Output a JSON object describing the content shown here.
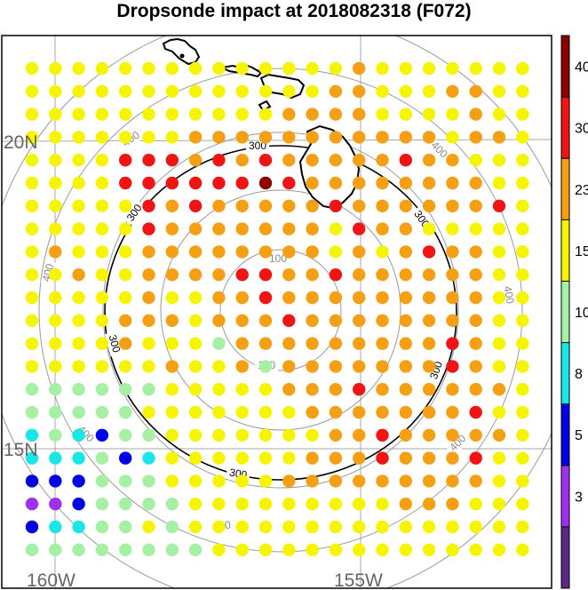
{
  "title": "Dropsonde impact at 2018082318 (F072)",
  "map": {
    "lat_labels": [
      {
        "text": "20N",
        "lat": 20
      },
      {
        "text": "15N",
        "lat": 15
      }
    ],
    "lon_labels": [
      {
        "text": "160W",
        "lon": -160
      },
      {
        "text": "155W",
        "lon": -155
      }
    ],
    "gray_rings": [
      {
        "value": 100,
        "label": "100"
      },
      {
        "value": 200,
        "label": ""
      },
      {
        "value": 300,
        "label": ""
      },
      {
        "value": 400,
        "label": "400"
      },
      {
        "value": 500,
        "label": ""
      }
    ],
    "black_ring": {
      "value": 300,
      "label": "300"
    },
    "coastline_color": "#000000"
  },
  "chart_data": {
    "type": "scatter",
    "title": "Dropsonde impact at 2018082318 (F072)",
    "colorbar": {
      "ticks": [
        "3",
        "5",
        "8",
        "10",
        "15",
        "23",
        "30",
        "40"
      ],
      "bins": [
        {
          "color": "#5b2a86"
        },
        {
          "color": "#a030f0"
        },
        {
          "color": "#0000e6"
        },
        {
          "color": "#19e6e6"
        },
        {
          "color": "#a6f0a6"
        },
        {
          "color": "#f5f500"
        },
        {
          "color": "#f5a014"
        },
        {
          "color": "#f01414"
        },
        {
          "color": "#8c0000"
        }
      ]
    },
    "grid_note_values": "bin index per dot: 5=15-23 yellow, 6=23-30 orange, 7=30-40 red, 8=>40 dark red, 4=10-15 green, 3=8-10 cyan, 2=5-8 blue, 1=3-5 purple",
    "rows": [
      [
        5,
        5,
        5,
        5,
        5,
        5,
        5,
        5,
        5,
        5,
        5,
        5,
        5,
        5,
        6,
        5,
        5,
        5,
        5,
        5,
        5,
        5
      ],
      [
        5,
        5,
        5,
        5,
        5,
        5,
        5,
        5,
        5,
        5,
        5,
        5,
        5,
        6,
        6,
        5,
        5,
        5,
        6,
        6,
        5,
        5
      ],
      [
        5,
        5,
        5,
        5,
        5,
        5,
        5,
        5,
        5,
        5,
        5,
        6,
        6,
        6,
        6,
        5,
        5,
        5,
        5,
        6,
        5,
        5
      ],
      [
        5,
        5,
        5,
        5,
        5,
        5,
        5,
        6,
        6,
        6,
        6,
        6,
        6,
        6,
        6,
        6,
        6,
        6,
        5,
        6,
        6,
        5
      ],
      [
        5,
        5,
        5,
        5,
        7,
        7,
        7,
        6,
        7,
        6,
        7,
        6,
        6,
        6,
        6,
        6,
        7,
        6,
        6,
        5,
        5,
        5
      ],
      [
        5,
        5,
        5,
        5,
        7,
        7,
        7,
        7,
        7,
        7,
        8,
        7,
        6,
        6,
        6,
        6,
        6,
        6,
        6,
        6,
        5,
        5
      ],
      [
        5,
        5,
        5,
        5,
        5,
        7,
        6,
        7,
        6,
        6,
        6,
        6,
        6,
        7,
        6,
        6,
        6,
        6,
        6,
        6,
        7,
        5
      ],
      [
        5,
        5,
        5,
        5,
        5,
        7,
        6,
        6,
        6,
        6,
        6,
        6,
        6,
        5,
        7,
        6,
        6,
        5,
        5,
        5,
        5,
        5
      ],
      [
        5,
        6,
        5,
        5,
        5,
        6,
        6,
        6,
        6,
        6,
        6,
        6,
        6,
        5,
        6,
        5,
        6,
        7,
        6,
        6,
        5,
        5
      ],
      [
        5,
        5,
        6,
        5,
        5,
        6,
        6,
        6,
        6,
        7,
        7,
        6,
        6,
        7,
        6,
        6,
        6,
        6,
        6,
        6,
        5,
        5
      ],
      [
        5,
        5,
        5,
        5,
        5,
        6,
        5,
        5,
        6,
        6,
        7,
        6,
        6,
        6,
        6,
        6,
        6,
        6,
        6,
        6,
        5,
        5
      ],
      [
        5,
        5,
        5,
        5,
        6,
        6,
        6,
        5,
        6,
        6,
        6,
        7,
        6,
        6,
        6,
        6,
        6,
        6,
        6,
        6,
        5,
        5
      ],
      [
        5,
        5,
        5,
        5,
        6,
        5,
        5,
        5,
        4,
        6,
        6,
        6,
        6,
        6,
        6,
        6,
        6,
        6,
        7,
        6,
        5,
        5
      ],
      [
        5,
        5,
        5,
        5,
        5,
        5,
        6,
        5,
        5,
        6,
        4,
        6,
        6,
        6,
        6,
        6,
        6,
        6,
        7,
        6,
        5,
        5
      ],
      [
        4,
        4,
        4,
        4,
        4,
        4,
        5,
        5,
        5,
        5,
        5,
        6,
        6,
        6,
        7,
        6,
        6,
        6,
        6,
        6,
        6,
        5
      ],
      [
        4,
        4,
        4,
        4,
        4,
        5,
        5,
        5,
        5,
        5,
        5,
        5,
        6,
        6,
        6,
        6,
        6,
        6,
        6,
        7,
        5,
        5
      ],
      [
        3,
        4,
        3,
        2,
        4,
        4,
        5,
        5,
        5,
        5,
        5,
        5,
        5,
        6,
        6,
        7,
        6,
        6,
        6,
        6,
        6,
        5
      ],
      [
        3,
        3,
        3,
        4,
        2,
        3,
        5,
        5,
        5,
        5,
        5,
        5,
        6,
        6,
        6,
        7,
        6,
        6,
        6,
        7,
        5,
        5
      ],
      [
        2,
        2,
        2,
        4,
        4,
        4,
        5,
        5,
        5,
        5,
        5,
        6,
        6,
        6,
        6,
        6,
        6,
        6,
        6,
        6,
        5,
        5
      ],
      [
        1,
        1,
        2,
        4,
        4,
        4,
        4,
        5,
        5,
        5,
        5,
        5,
        5,
        5,
        5,
        5,
        6,
        6,
        6,
        5,
        5,
        5
      ],
      [
        2,
        3,
        3,
        4,
        4,
        5,
        4,
        5,
        5,
        5,
        5,
        5,
        5,
        5,
        5,
        5,
        5,
        5,
        5,
        5,
        5,
        5
      ],
      [
        4,
        4,
        4,
        4,
        4,
        4,
        4,
        4,
        5,
        5,
        5,
        5,
        5,
        5,
        5,
        5,
        5,
        5,
        5,
        5,
        5,
        5
      ]
    ]
  }
}
